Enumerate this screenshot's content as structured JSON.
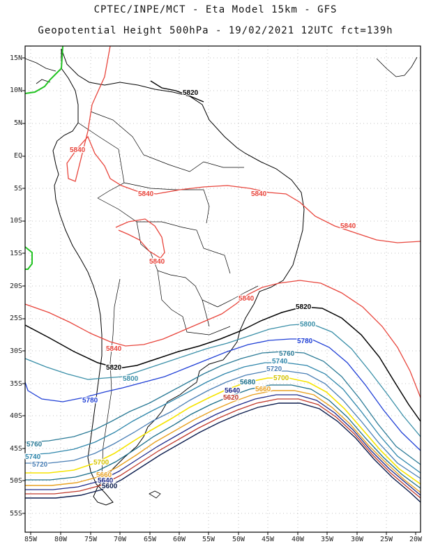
{
  "header": {
    "line1": "CPTEC/INPE/MCT -  Eta Model 15km - GFS",
    "line2": "Geopotential Height 500hPa - 19/02/2021 12UTC fct=139h"
  },
  "axes": {
    "lat_labels": [
      "15N",
      "10N",
      "5N",
      "EQ",
      "5S",
      "10S",
      "15S",
      "20S",
      "25S",
      "30S",
      "35S",
      "40S",
      "45S",
      "50S",
      "55S"
    ],
    "lon_labels": [
      "85W",
      "80W",
      "75W",
      "70W",
      "65W",
      "60W",
      "55W",
      "50W",
      "45W",
      "40W",
      "35W",
      "30W",
      "25W",
      "20W"
    ]
  },
  "contours": [
    {
      "value": "5840",
      "color": "#e8453c"
    },
    {
      "value": "5820",
      "color": "#000000"
    },
    {
      "value": "5800",
      "color": "#3a8fa8"
    },
    {
      "value": "5780",
      "color": "#1f3fd6"
    },
    {
      "value": "5760",
      "color": "#2a7a96"
    },
    {
      "value": "5740",
      "color": "#2e86ab"
    },
    {
      "value": "5720",
      "color": "#4a7fb5"
    },
    {
      "value": "5700",
      "color": "#f5e400"
    },
    {
      "value": "5680",
      "color": "#1a6e8a"
    },
    {
      "value": "5660",
      "color": "#e8a020"
    },
    {
      "value": "5640",
      "color": "#1e2a8a"
    },
    {
      "value": "5620",
      "color": "#c0392b"
    },
    {
      "value": "5600",
      "color": "#0b1c4d"
    }
  ],
  "labels_on_map": [
    "5820",
    "5840",
    "5840",
    "5840",
    "5840",
    "5840",
    "5840",
    "5840",
    "5820",
    "5800",
    "5780",
    "5800",
    "5780",
    "5760",
    "5740",
    "5720",
    "5700",
    "5680",
    "5660",
    "5640",
    "5620",
    "5760",
    "5740",
    "5720",
    "5700",
    "5660",
    "5640",
    "5600"
  ]
}
